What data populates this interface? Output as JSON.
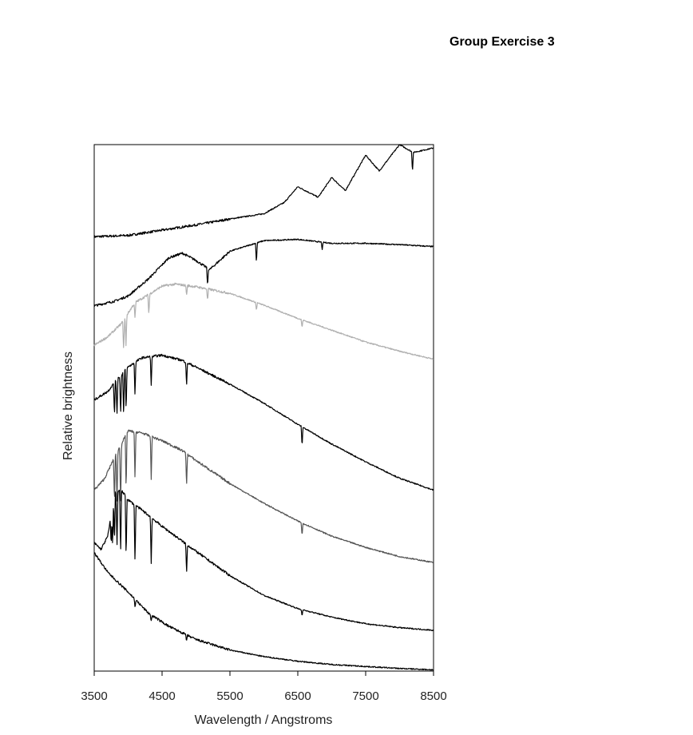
{
  "header": {
    "title": "Group Exercise 3"
  },
  "chart_data": {
    "type": "line",
    "title": "",
    "xlabel": "Wavelength / Angstroms",
    "ylabel": "Relative brightness",
    "xlim": [
      3500,
      8500
    ],
    "ylim": [
      0,
      8
    ],
    "x_ticks": [
      3500,
      4500,
      5500,
      6500,
      7500,
      8500
    ],
    "y_ticks": [],
    "grid": false,
    "legend": "none",
    "series": [
      {
        "color": "#000000",
        "x": [
          3500,
          4000,
          4500,
          5000,
          5500,
          6000,
          6300,
          6500,
          6800,
          7000,
          7200,
          7500,
          7700,
          8000,
          8200,
          8500
        ],
        "y": [
          6.6,
          6.62,
          6.7,
          6.78,
          6.87,
          6.95,
          7.12,
          7.36,
          7.2,
          7.5,
          7.3,
          7.84,
          7.6,
          8.0,
          7.88,
          7.95
        ],
        "absorption_lines": [
          {
            "x": 8190,
            "depth": 0.3
          }
        ]
      },
      {
        "color": "#000000",
        "x": [
          3500,
          3800,
          4000,
          4300,
          4600,
          4800,
          5000,
          5200,
          5500,
          6000,
          6500,
          7000,
          7500,
          8000,
          8500
        ],
        "y": [
          5.55,
          5.62,
          5.7,
          5.96,
          6.28,
          6.35,
          6.24,
          6.1,
          6.38,
          6.54,
          6.56,
          6.5,
          6.5,
          6.48,
          6.45
        ],
        "absorption_lines": [
          {
            "x": 5170,
            "depth": 0.28
          },
          {
            "x": 5890,
            "depth": 0.3
          },
          {
            "x": 6860,
            "depth": 0.12
          }
        ]
      },
      {
        "color": "#b0b0b0",
        "x": [
          3500,
          3700,
          3900,
          4100,
          4300,
          4500,
          4700,
          5000,
          5500,
          6000,
          6500,
          7000,
          7500,
          8000,
          8500
        ],
        "y": [
          4.95,
          5.08,
          5.28,
          5.6,
          5.72,
          5.85,
          5.88,
          5.84,
          5.74,
          5.56,
          5.36,
          5.18,
          5.0,
          4.86,
          4.74
        ],
        "absorption_lines": [
          {
            "x": 3934,
            "depth": 0.5
          },
          {
            "x": 3968,
            "depth": 0.45
          },
          {
            "x": 4101,
            "depth": 0.25
          },
          {
            "x": 4305,
            "depth": 0.3
          },
          {
            "x": 4861,
            "depth": 0.15
          },
          {
            "x": 5170,
            "depth": 0.18
          },
          {
            "x": 5890,
            "depth": 0.12
          },
          {
            "x": 6563,
            "depth": 0.12
          }
        ]
      },
      {
        "color": "#000000",
        "x": [
          3500,
          3700,
          3850,
          4000,
          4200,
          4500,
          4800,
          5000,
          5500,
          6000,
          6500,
          7000,
          7500,
          8000,
          8500
        ],
        "y": [
          4.12,
          4.25,
          4.45,
          4.62,
          4.76,
          4.8,
          4.72,
          4.62,
          4.36,
          4.07,
          3.75,
          3.45,
          3.18,
          2.93,
          2.75
        ],
        "absorption_lines": [
          {
            "x": 3798,
            "depth": 0.5
          },
          {
            "x": 3835,
            "depth": 0.55
          },
          {
            "x": 3889,
            "depth": 0.6
          },
          {
            "x": 3934,
            "depth": 0.7
          },
          {
            "x": 3970,
            "depth": 0.65
          },
          {
            "x": 4101,
            "depth": 0.5
          },
          {
            "x": 4340,
            "depth": 0.45
          },
          {
            "x": 4861,
            "depth": 0.35
          },
          {
            "x": 6563,
            "depth": 0.3
          }
        ]
      },
      {
        "color": "#555555",
        "x": [
          3500,
          3650,
          3800,
          4000,
          4200,
          4500,
          4800,
          5000,
          5500,
          6000,
          6500,
          7000,
          7500,
          8000,
          8500
        ],
        "y": [
          2.75,
          2.92,
          3.25,
          3.65,
          3.62,
          3.5,
          3.35,
          3.2,
          2.85,
          2.55,
          2.28,
          2.05,
          1.88,
          1.74,
          1.65
        ],
        "absorption_lines": [
          {
            "x": 3798,
            "depth": 0.7
          },
          {
            "x": 3835,
            "depth": 0.8
          },
          {
            "x": 3889,
            "depth": 0.9
          },
          {
            "x": 3970,
            "depth": 0.85
          },
          {
            "x": 4101,
            "depth": 0.75
          },
          {
            "x": 4340,
            "depth": 0.65
          },
          {
            "x": 4861,
            "depth": 0.5
          },
          {
            "x": 6563,
            "depth": 0.2
          }
        ]
      },
      {
        "color": "#000000",
        "x": [
          3500,
          3600,
          3700,
          3800,
          3900,
          4000,
          4200,
          4500,
          5000,
          5500,
          6000,
          6500,
          7000,
          7500,
          8000,
          8500
        ],
        "y": [
          1.95,
          1.85,
          2.05,
          2.7,
          2.75,
          2.6,
          2.45,
          2.2,
          1.82,
          1.45,
          1.15,
          0.95,
          0.82,
          0.72,
          0.66,
          0.62
        ],
        "absorption_lines": [
          {
            "x": 3750,
            "depth": 0.45
          },
          {
            "x": 3771,
            "depth": 0.6
          },
          {
            "x": 3798,
            "depth": 0.75
          },
          {
            "x": 3835,
            "depth": 0.85
          },
          {
            "x": 3889,
            "depth": 0.95
          },
          {
            "x": 3970,
            "depth": 0.95
          },
          {
            "x": 4101,
            "depth": 0.9
          },
          {
            "x": 4340,
            "depth": 0.7
          },
          {
            "x": 4861,
            "depth": 0.45
          },
          {
            "x": 6563,
            "depth": 0.1
          }
        ]
      },
      {
        "color": "#000000",
        "x": [
          3500,
          3700,
          4000,
          4300,
          4600,
          5000,
          5500,
          6000,
          6500,
          7000,
          7500,
          8000,
          8500
        ],
        "y": [
          1.8,
          1.5,
          1.2,
          0.88,
          0.68,
          0.48,
          0.32,
          0.22,
          0.15,
          0.1,
          0.07,
          0.04,
          0.02
        ],
        "absorption_lines": [
          {
            "x": 4101,
            "depth": 0.12
          },
          {
            "x": 4340,
            "depth": 0.1
          },
          {
            "x": 4861,
            "depth": 0.1
          }
        ]
      }
    ]
  }
}
